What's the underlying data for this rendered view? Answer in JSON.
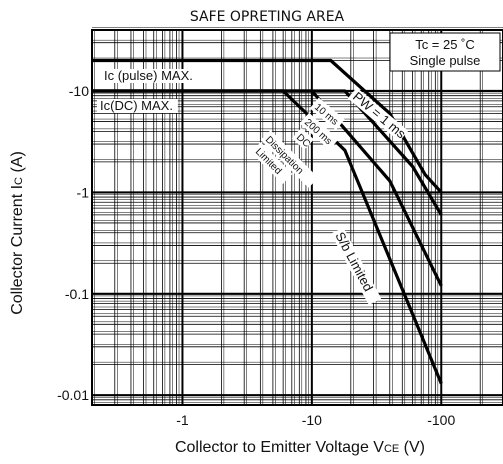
{
  "chart_data": {
    "type": "line",
    "title": "SAFE OPRETING AREA",
    "xlabel": "Collector to Emitter Voltage  V",
    "xlabel_sub": "CE",
    "xlabel_unit": "  (V)",
    "ylabel": "Collector Current  I",
    "ylabel_sub": "C",
    "ylabel_unit": "  (A)",
    "xscale": "log",
    "yscale": "log",
    "xlim": [
      -0.2,
      -300
    ],
    "ylim": [
      -0.008,
      -40
    ],
    "grid": true,
    "x_tick_labels": [
      "-1",
      "-10",
      "-100"
    ],
    "x_tick_values": [
      -1,
      -10,
      -100
    ],
    "y_tick_labels": [
      "-10",
      "-1",
      "-0.1",
      "-0.01"
    ],
    "y_tick_values": [
      -10,
      -1,
      -0.1,
      -0.01
    ],
    "conditions": [
      "Tc = 25 ˚C",
      "Single pulse"
    ],
    "annotations": {
      "ic_pulse": "Ic (pulse) MAX.",
      "ic_dc": "Ic(DC) MAX.",
      "pw": "PW = 1 ms",
      "ms10": "10 ms",
      "ms200": "200 ms",
      "dc": "DC",
      "dissipation": "Dissipation",
      "limited": "Limited",
      "sb": "S/b Limited"
    },
    "series": [
      {
        "values": [
          {
            "x": -0.2,
            "y": -20
          },
          {
            "x": -14,
            "y": -20
          },
          {
            "x": -40,
            "y": -6
          },
          {
            "x": -75,
            "y": -1.5
          },
          {
            "x": -100,
            "y": -1
          }
        ]
      },
      {
        "values": [
          {
            "x": -0.2,
            "y": -10
          },
          {
            "x": -18,
            "y": -10
          },
          {
            "x": -60,
            "y": -1.8
          },
          {
            "x": -100,
            "y": -0.6
          }
        ]
      },
      {
        "values": [
          {
            "x": -0.2,
            "y": -10
          },
          {
            "x": -10,
            "y": -10
          },
          {
            "x": -40,
            "y": -1.3
          },
          {
            "x": -100,
            "y": -0.12
          }
        ]
      },
      {
        "values": [
          {
            "x": -0.2,
            "y": -10
          },
          {
            "x": -6,
            "y": -10
          },
          {
            "x": -18,
            "y": -2.6
          },
          {
            "x": -100,
            "y": -0.013
          }
        ]
      }
    ]
  }
}
